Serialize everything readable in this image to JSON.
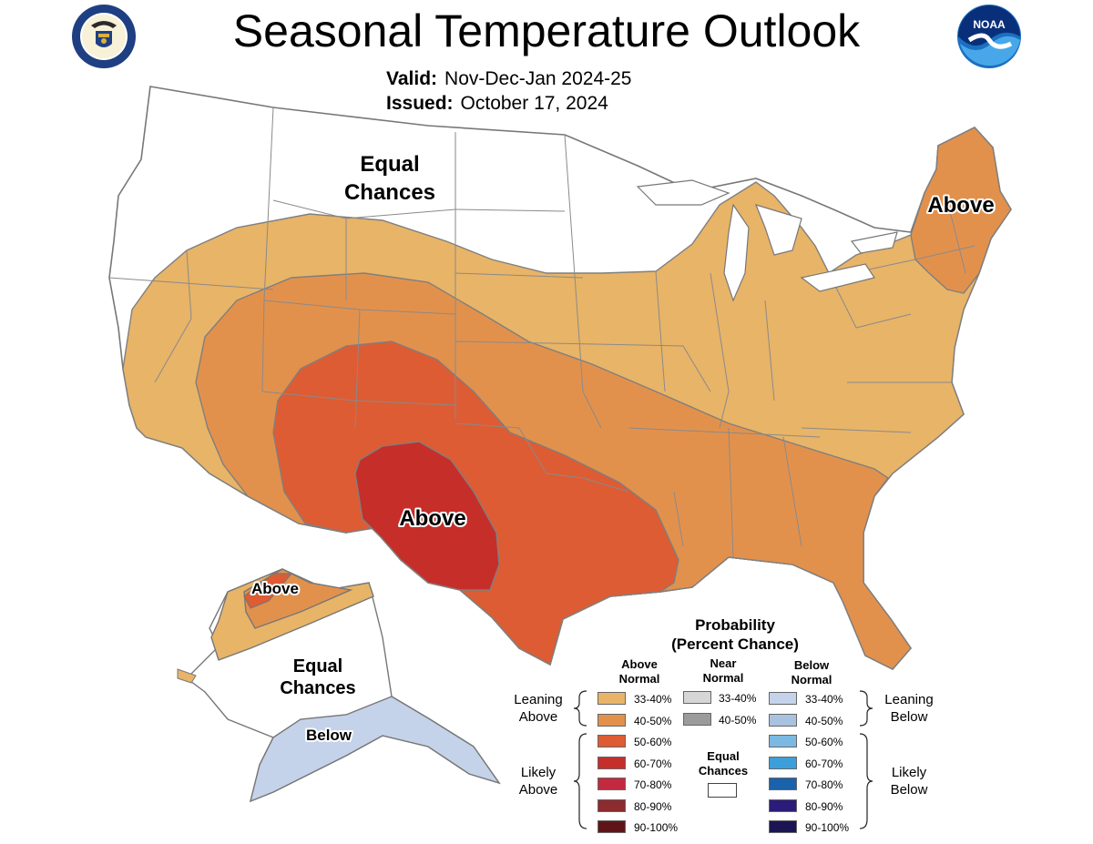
{
  "header": {
    "title": "Seasonal Temperature Outlook",
    "valid_label": "Valid:",
    "valid_value": "Nov-Dec-Jan 2024-25",
    "issued_label": "Issued:",
    "issued_value": "October 17, 2024"
  },
  "logos": {
    "left": {
      "name": "department-of-commerce-seal",
      "text": "DEPARTMENT OF COMMERCE · UNITED STATES OF AMERICA"
    },
    "right": {
      "name": "noaa-logo",
      "text": "NOAA"
    }
  },
  "map_labels": {
    "equal_chances_north": "Equal\nChances",
    "above_northeast": "Above",
    "above_texas": "Above",
    "above_alaska": "Above",
    "equal_chances_alaska": "Equal\nChances",
    "below_alaska": "Below"
  },
  "colors": {
    "above_33_40": "#E8B468",
    "above_40_50": "#E2914D",
    "above_50_60": "#DD5C33",
    "above_60_70": "#C62E2A",
    "above_70_80": "#C3293F",
    "above_80_90": "#8C2B30",
    "above_90_100": "#5F1518",
    "near_33_40": "#D6D6D6",
    "near_40_50": "#9B9B9B",
    "below_33_40": "#C5D3EA",
    "below_40_50": "#A9C2E0",
    "below_50_60": "#7BB9E3",
    "below_60_70": "#3D9FD9",
    "below_70_80": "#1A62AB",
    "below_80_90": "#2A1C78",
    "below_90_100": "#1B1553",
    "equal_chances": "#FFFFFF",
    "state_lines": "#8A8A8A"
  },
  "legend": {
    "title_line1": "Probability",
    "title_line2": "(Percent Chance)",
    "above_head": "Above\nNormal",
    "near_head": "Near\nNormal",
    "below_head": "Below\nNormal",
    "leaning_above": "Leaning\nAbove",
    "likely_above": "Likely\nAbove",
    "leaning_below": "Leaning\nBelow",
    "likely_below": "Likely\nBelow",
    "equal_chances": "Equal\nChances",
    "above_items": [
      {
        "label": "33-40%",
        "color": "#E8B468"
      },
      {
        "label": "40-50%",
        "color": "#E2914D"
      },
      {
        "label": "50-60%",
        "color": "#DD5C33"
      },
      {
        "label": "60-70%",
        "color": "#C62E2A"
      },
      {
        "label": "70-80%",
        "color": "#C3293F"
      },
      {
        "label": "80-90%",
        "color": "#8C2B30"
      },
      {
        "label": "90-100%",
        "color": "#5F1518"
      }
    ],
    "near_items": [
      {
        "label": "33-40%",
        "color": "#D6D6D6"
      },
      {
        "label": "40-50%",
        "color": "#9B9B9B"
      }
    ],
    "below_items": [
      {
        "label": "33-40%",
        "color": "#C5D3EA"
      },
      {
        "label": "40-50%",
        "color": "#A9C2E0"
      },
      {
        "label": "50-60%",
        "color": "#7BB9E3"
      },
      {
        "label": "60-70%",
        "color": "#3D9FD9"
      },
      {
        "label": "70-80%",
        "color": "#1A62AB"
      },
      {
        "label": "80-90%",
        "color": "#2A1C78"
      },
      {
        "label": "90-100%",
        "color": "#1B1553"
      }
    ]
  }
}
